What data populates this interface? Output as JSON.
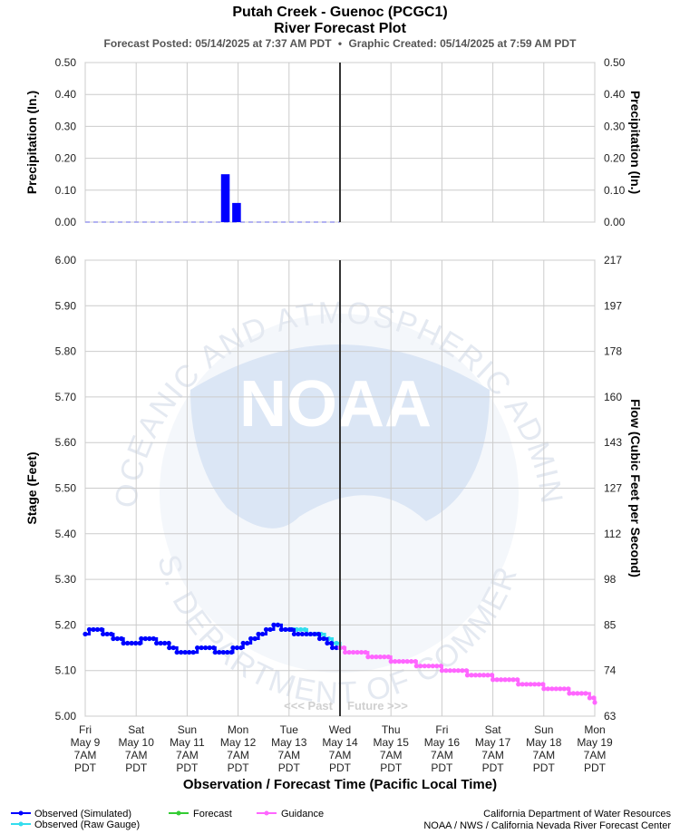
{
  "title": "Putah Creek - Guenoc (PCGC1)",
  "subtitle": "River Forecast Plot",
  "posted": "Forecast Posted: 05/14/2025 at 7:37 AM PDT",
  "separator": "•",
  "created": "Graphic Created: 05/14/2025 at 7:59 AM PDT",
  "watermark": {
    "logo": "NOAA",
    "ring_top": "NATIONAL OCEANIC AND ATMOSPHERIC ADMINISTRATION",
    "ring_bottom": "U.S. DEPARTMENT OF COMMERCE"
  },
  "past_label": "<<< Past",
  "future_label": "Future >>>",
  "x_title": "Observation / Forecast Time (Pacific Local Time)",
  "x_ticks": [
    {
      "day": "Fri",
      "date": "May 9",
      "time": "7AM",
      "tz": "PDT"
    },
    {
      "day": "Sat",
      "date": "May 10",
      "time": "7AM",
      "tz": "PDT"
    },
    {
      "day": "Sun",
      "date": "May 11",
      "time": "7AM",
      "tz": "PDT"
    },
    {
      "day": "Mon",
      "date": "May 12",
      "time": "7AM",
      "tz": "PDT"
    },
    {
      "day": "Tue",
      "date": "May 13",
      "time": "7AM",
      "tz": "PDT"
    },
    {
      "day": "Wed",
      "date": "May 14",
      "time": "7AM",
      "tz": "PDT"
    },
    {
      "day": "Thu",
      "date": "May 15",
      "time": "7AM",
      "tz": "PDT"
    },
    {
      "day": "Fri",
      "date": "May 16",
      "time": "7AM",
      "tz": "PDT"
    },
    {
      "day": "Sat",
      "date": "May 17",
      "time": "7AM",
      "tz": "PDT"
    },
    {
      "day": "Sun",
      "date": "May 18",
      "time": "7AM",
      "tz": "PDT"
    },
    {
      "day": "Mon",
      "date": "May 19",
      "time": "7AM",
      "tz": "PDT"
    }
  ],
  "legend": [
    {
      "label": "Observed (Simulated)",
      "color": "#0000ff"
    },
    {
      "label": "Observed (Raw Gauge)",
      "color": "#33ddee"
    },
    {
      "label": "Forecast",
      "color": "#33cc33"
    },
    {
      "label": "Guidance",
      "color": "#ff66ff"
    }
  ],
  "credits": [
    "California Department of Water Resources",
    "NOAA / NWS / California Nevada River Forecast Center"
  ],
  "chart_data": [
    {
      "type": "bar",
      "ylabel_left": "Precipitation (In.)",
      "ylabel_right": "Precipitation (In.)",
      "ylim": [
        0,
        0.5
      ],
      "y_ticks": [
        "0.00",
        "0.10",
        "0.20",
        "0.30",
        "0.40",
        "0.50"
      ],
      "x_units": "days from Fri May 9 7AM PDT",
      "xlim": [
        0,
        10
      ],
      "now": 5,
      "bar_color": "#0000ff",
      "bar_width_days": 0.17,
      "bars": [
        {
          "x": 2.75,
          "value": 0.15
        },
        {
          "x": 2.97,
          "value": 0.06
        }
      ],
      "zero_line_end": 5,
      "grid": true
    },
    {
      "type": "line",
      "ylabel_left": "Stage (Feet)",
      "ylabel_right": "Flow (Cubic Feet per Second)",
      "ylim": [
        5.0,
        6.0
      ],
      "y_ticks": [
        "5.00",
        "5.10",
        "5.20",
        "5.30",
        "5.40",
        "5.50",
        "5.60",
        "5.70",
        "5.80",
        "5.90",
        "6.00"
      ],
      "y_ticks_right": [
        "63",
        "74",
        "85",
        "98",
        "112",
        "127",
        "143",
        "160",
        "178",
        "197",
        "217"
      ],
      "x_units": "days from Fri May 9 7AM PDT",
      "xlim": [
        0,
        10
      ],
      "now": 5,
      "grid": true,
      "series": [
        {
          "name": "Observed (Raw Gauge)",
          "color": "#33ddee",
          "points": [
            [
              0,
              5.18
            ],
            [
              0.08,
              5.19
            ],
            [
              0.35,
              5.18
            ],
            [
              0.55,
              5.17
            ],
            [
              0.75,
              5.16
            ],
            [
              1.1,
              5.17
            ],
            [
              1.4,
              5.16
            ],
            [
              1.65,
              5.15
            ],
            [
              1.8,
              5.14
            ],
            [
              2.2,
              5.15
            ],
            [
              2.55,
              5.14
            ],
            [
              2.9,
              5.15
            ],
            [
              3.1,
              5.16
            ],
            [
              3.25,
              5.17
            ],
            [
              3.4,
              5.18
            ],
            [
              3.55,
              5.19
            ],
            [
              3.7,
              5.2
            ],
            [
              3.85,
              5.19
            ],
            [
              4.15,
              5.19
            ],
            [
              4.35,
              5.18
            ],
            [
              4.55,
              5.18
            ],
            [
              4.7,
              5.17
            ],
            [
              4.85,
              5.16
            ],
            [
              5.0,
              5.15
            ]
          ]
        },
        {
          "name": "Observed (Simulated)",
          "color": "#0000ff",
          "points": [
            [
              0,
              5.18
            ],
            [
              0.08,
              5.19
            ],
            [
              0.35,
              5.18
            ],
            [
              0.55,
              5.17
            ],
            [
              0.75,
              5.16
            ],
            [
              1.1,
              5.17
            ],
            [
              1.4,
              5.16
            ],
            [
              1.65,
              5.15
            ],
            [
              1.8,
              5.14
            ],
            [
              2.2,
              5.15
            ],
            [
              2.55,
              5.14
            ],
            [
              2.9,
              5.15
            ],
            [
              3.1,
              5.16
            ],
            [
              3.25,
              5.17
            ],
            [
              3.4,
              5.18
            ],
            [
              3.55,
              5.19
            ],
            [
              3.7,
              5.2
            ],
            [
              3.85,
              5.19
            ],
            [
              4.05,
              5.19
            ],
            [
              4.1,
              5.18
            ],
            [
              4.5,
              5.18
            ],
            [
              4.6,
              5.17
            ],
            [
              4.75,
              5.16
            ],
            [
              4.85,
              5.15
            ],
            [
              5.0,
              5.15
            ]
          ]
        },
        {
          "name": "Guidance",
          "color": "#ff66ff",
          "points": [
            [
              5.0,
              5.15
            ],
            [
              5.1,
              5.14
            ],
            [
              5.55,
              5.13
            ],
            [
              6.0,
              5.12
            ],
            [
              6.5,
              5.11
            ],
            [
              7.0,
              5.1
            ],
            [
              7.5,
              5.09
            ],
            [
              8.0,
              5.08
            ],
            [
              8.5,
              5.07
            ],
            [
              9.0,
              5.06
            ],
            [
              9.5,
              5.05
            ],
            [
              9.9,
              5.04
            ],
            [
              10.0,
              5.03
            ]
          ]
        }
      ]
    }
  ]
}
